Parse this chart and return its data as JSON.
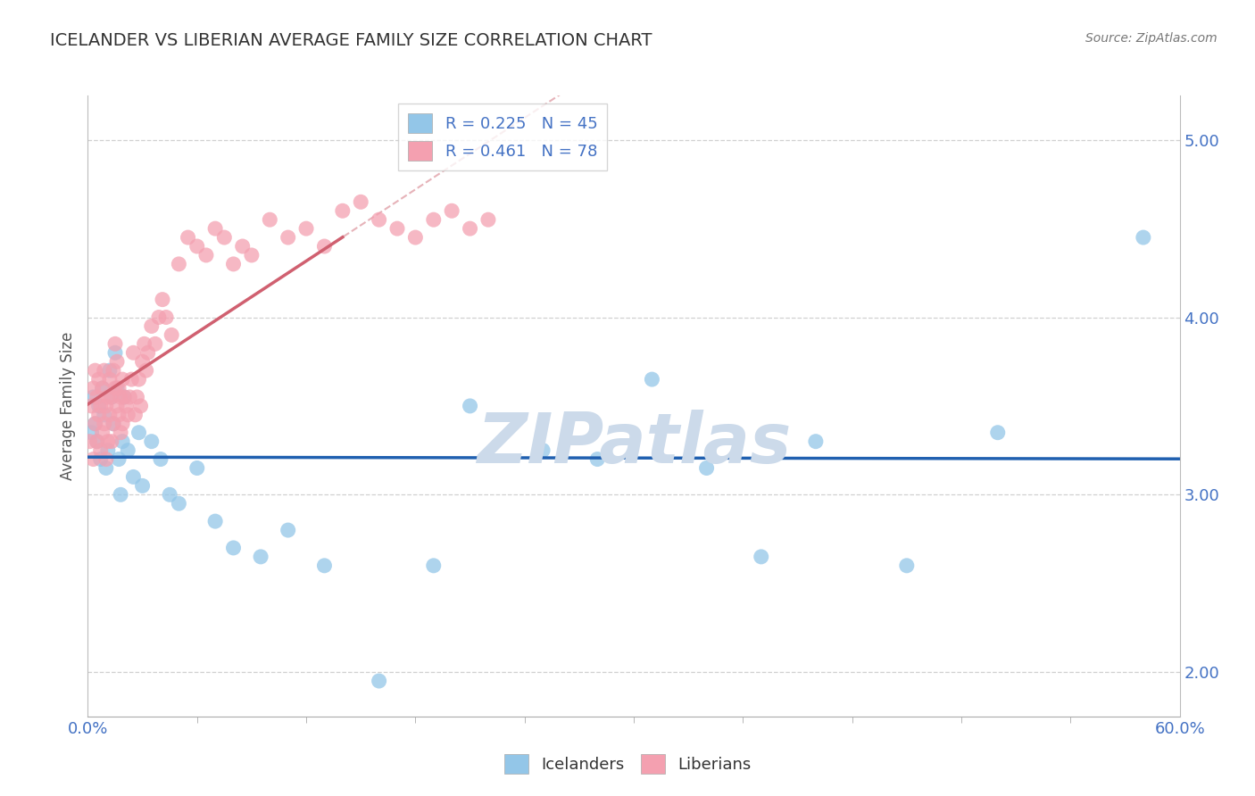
{
  "title": "ICELANDER VS LIBERIAN AVERAGE FAMILY SIZE CORRELATION CHART",
  "source": "Source: ZipAtlas.com",
  "ylabel": "Average Family Size",
  "xlim": [
    0.0,
    0.6
  ],
  "ylim": [
    1.75,
    5.25
  ],
  "yticks": [
    2.0,
    3.0,
    4.0,
    5.0
  ],
  "ytick_labels": [
    "2.00",
    "3.00",
    "4.00",
    "5.00"
  ],
  "blue_color": "#93c6e8",
  "pink_color": "#f4a0b0",
  "blue_line_color": "#2060b0",
  "pink_line_color": "#d06070",
  "pink_dash_color": "#e0a0a8",
  "grid_color": "#d0d0d0",
  "watermark_color": "#ccdaea",
  "axis_color": "#4472c4",
  "legend_r_blue": "R = 0.225",
  "legend_n_blue": "N = 45",
  "legend_r_pink": "R = 0.461",
  "legend_n_pink": "N = 78",
  "blue_scatter_x": [
    0.002,
    0.003,
    0.004,
    0.005,
    0.006,
    0.007,
    0.008,
    0.009,
    0.01,
    0.011,
    0.012,
    0.013,
    0.014,
    0.015,
    0.016,
    0.017,
    0.018,
    0.019,
    0.02,
    0.022,
    0.025,
    0.028,
    0.03,
    0.035,
    0.04,
    0.045,
    0.05,
    0.06,
    0.07,
    0.08,
    0.095,
    0.11,
    0.13,
    0.16,
    0.19,
    0.21,
    0.25,
    0.28,
    0.31,
    0.34,
    0.37,
    0.4,
    0.45,
    0.5,
    0.58
  ],
  "blue_scatter_y": [
    3.35,
    3.55,
    3.4,
    3.3,
    3.5,
    3.2,
    3.6,
    3.45,
    3.15,
    3.25,
    3.7,
    3.55,
    3.4,
    3.8,
    3.6,
    3.2,
    3.0,
    3.3,
    3.55,
    3.25,
    3.1,
    3.35,
    3.05,
    3.3,
    3.2,
    3.0,
    2.95,
    3.15,
    2.85,
    2.7,
    2.65,
    2.8,
    2.6,
    1.95,
    2.6,
    3.5,
    3.25,
    3.2,
    3.65,
    3.15,
    2.65,
    3.3,
    2.6,
    3.35,
    4.45
  ],
  "pink_scatter_x": [
    0.001,
    0.002,
    0.003,
    0.003,
    0.004,
    0.004,
    0.005,
    0.005,
    0.006,
    0.006,
    0.007,
    0.007,
    0.008,
    0.008,
    0.009,
    0.009,
    0.01,
    0.01,
    0.011,
    0.011,
    0.012,
    0.012,
    0.013,
    0.013,
    0.014,
    0.014,
    0.015,
    0.015,
    0.016,
    0.016,
    0.017,
    0.017,
    0.018,
    0.018,
    0.019,
    0.019,
    0.02,
    0.021,
    0.022,
    0.023,
    0.024,
    0.025,
    0.026,
    0.027,
    0.028,
    0.029,
    0.03,
    0.031,
    0.032,
    0.033,
    0.035,
    0.037,
    0.039,
    0.041,
    0.043,
    0.046,
    0.05,
    0.055,
    0.06,
    0.065,
    0.07,
    0.075,
    0.08,
    0.085,
    0.09,
    0.1,
    0.11,
    0.12,
    0.13,
    0.14,
    0.15,
    0.16,
    0.17,
    0.18,
    0.19,
    0.2,
    0.21,
    0.22
  ],
  "pink_scatter_y": [
    3.3,
    3.5,
    3.2,
    3.6,
    3.4,
    3.7,
    3.3,
    3.55,
    3.45,
    3.65,
    3.25,
    3.5,
    3.35,
    3.6,
    3.4,
    3.7,
    3.2,
    3.5,
    3.3,
    3.55,
    3.45,
    3.65,
    3.3,
    3.55,
    3.4,
    3.7,
    3.6,
    3.85,
    3.5,
    3.75,
    3.45,
    3.6,
    3.35,
    3.55,
    3.4,
    3.65,
    3.55,
    3.5,
    3.45,
    3.55,
    3.65,
    3.8,
    3.45,
    3.55,
    3.65,
    3.5,
    3.75,
    3.85,
    3.7,
    3.8,
    3.95,
    3.85,
    4.0,
    4.1,
    4.0,
    3.9,
    4.3,
    4.45,
    4.4,
    4.35,
    4.5,
    4.45,
    4.3,
    4.4,
    4.35,
    4.55,
    4.45,
    4.5,
    4.4,
    4.6,
    4.65,
    4.55,
    4.5,
    4.45,
    4.55,
    4.6,
    4.5,
    4.55
  ],
  "background_color": "#ffffff"
}
